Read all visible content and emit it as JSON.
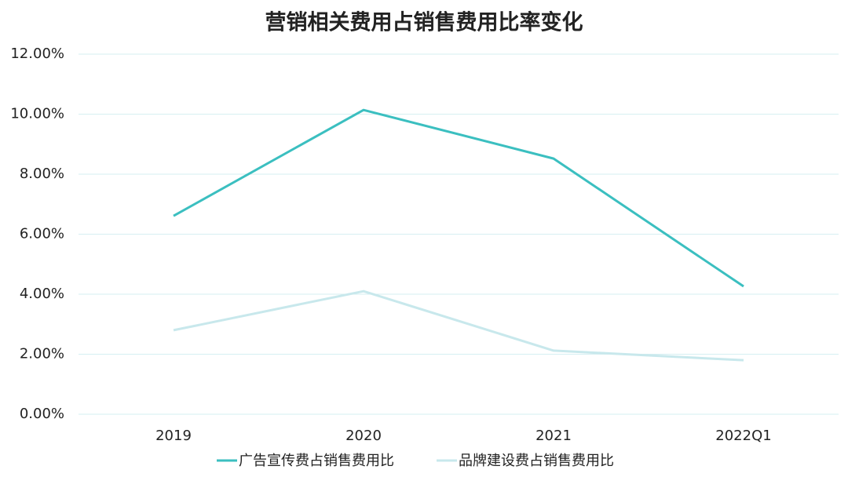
{
  "chart_data": {
    "type": "line",
    "title": "营销相关费用占销售费用比率变化",
    "categories": [
      "2019",
      "2020",
      "2021",
      "2022Q1"
    ],
    "series": [
      {
        "name": "广告宣传费占销售费用比",
        "color": "#3bbfc0",
        "values": [
          6.61,
          10.14,
          8.52,
          4.26
        ]
      },
      {
        "name": "品牌建设费占销售费用比",
        "color": "#c8e8ec",
        "values": [
          2.8,
          4.1,
          2.12,
          1.8
        ]
      }
    ],
    "ylim": [
      0,
      12
    ],
    "yticks": [
      {
        "value": 0,
        "label": "0.00%"
      },
      {
        "value": 2,
        "label": "2.00%"
      },
      {
        "value": 4,
        "label": "4.00%"
      },
      {
        "value": 6,
        "label": "6.00%"
      },
      {
        "value": 8,
        "label": "8.00%"
      },
      {
        "value": 10,
        "label": "10.00%"
      },
      {
        "value": 12,
        "label": "12.00%"
      }
    ],
    "grid": true,
    "legend": "bottom"
  }
}
